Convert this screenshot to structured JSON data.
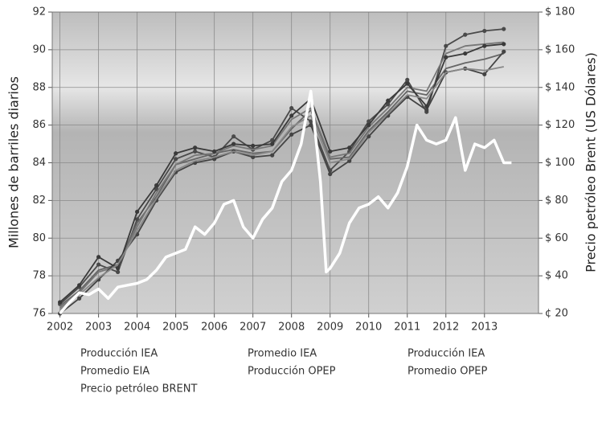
{
  "chart_data": {
    "type": "line",
    "y_label": "Millones de barriles diarios",
    "y2_label": "Precio petróleo Brent (US Dólares)",
    "x": [
      2002,
      2002.5,
      2003,
      2003.5,
      2004,
      2004.5,
      2005,
      2005.5,
      2006,
      2006.5,
      2007,
      2007.5,
      2008,
      2008.5,
      2009,
      2009.5,
      2010,
      2010.5,
      2011,
      2011.5,
      2012,
      2012.5,
      2013,
      2013.5
    ],
    "xlim": [
      2001.8,
      2014.4
    ],
    "xticks": [
      2002,
      2003,
      2004,
      2005,
      2006,
      2007,
      2008,
      2009,
      2010,
      2011,
      2012,
      2013
    ],
    "ylim": [
      76,
      92
    ],
    "yticks": [
      76,
      78,
      80,
      82,
      84,
      86,
      88,
      90,
      92
    ],
    "y2lim": [
      20,
      180
    ],
    "y2ticks": [
      {
        "value": 20,
        "label": "¢ 20"
      },
      {
        "value": 40,
        "label": "$ 40"
      },
      {
        "value": 60,
        "label": "$ 60"
      },
      {
        "value": 80,
        "label": "$ 80"
      },
      {
        "value": 100,
        "label": "$ 100"
      },
      {
        "value": 120,
        "label": "$ 120"
      },
      {
        "value": 140,
        "label": "$ 140"
      },
      {
        "value": 160,
        "label": "$ 160"
      },
      {
        "value": 180,
        "label": "$ 180"
      }
    ],
    "grid": true,
    "series": [
      {
        "name": "Producción  IEA",
        "color": "#4a4a4a",
        "markers": true,
        "values": [
          76.5,
          77.4,
          78.6,
          78.2,
          81.0,
          82.6,
          84.2,
          84.6,
          84.3,
          85.4,
          84.7,
          85.2,
          86.9,
          86.2,
          83.6,
          84.6,
          86.2,
          87.1,
          88.4,
          86.7,
          90.2,
          90.8,
          91.0,
          91.1
        ]
      },
      {
        "name": "Promedio EIA",
        "color": "#666666",
        "markers": false,
        "values": [
          76.4,
          77.2,
          78.3,
          78.6,
          80.8,
          82.2,
          83.9,
          84.2,
          84.5,
          84.7,
          84.5,
          84.6,
          85.8,
          86.8,
          84.2,
          84.3,
          85.7,
          86.7,
          87.8,
          87.6,
          89.0,
          89.3,
          89.5,
          89.8
        ]
      },
      {
        "name": "Precio petróleo BRENT",
        "color": "#ffffff",
        "axis": "y2",
        "markers": false,
        "x": [
          2002,
          2002.25,
          2002.5,
          2002.75,
          2003,
          2003.25,
          2003.5,
          2003.75,
          2004,
          2004.25,
          2004.5,
          2004.75,
          2005,
          2005.25,
          2005.5,
          2005.75,
          2006,
          2006.25,
          2006.5,
          2006.75,
          2007,
          2007.25,
          2007.5,
          2007.75,
          2008,
          2008.25,
          2008.5,
          2008.75,
          2008.9,
          2009,
          2009.25,
          2009.5,
          2009.75,
          2010,
          2010.25,
          2010.5,
          2010.75,
          2011,
          2011.25,
          2011.5,
          2011.75,
          2012,
          2012.25,
          2012.5,
          2012.75,
          2013,
          2013.25,
          2013.5,
          2013.7
        ],
        "values": [
          20,
          26,
          31,
          30,
          33,
          28,
          34,
          35,
          36,
          38,
          43,
          50,
          52,
          54,
          66,
          62,
          68,
          78,
          80,
          66,
          60,
          70,
          76,
          90,
          96,
          110,
          138,
          90,
          42,
          44,
          52,
          68,
          76,
          78,
          82,
          76,
          84,
          98,
          120,
          112,
          110,
          112,
          124,
          96,
          110,
          108,
          112,
          100,
          100
        ]
      },
      {
        "name": "Promedio IEA",
        "color": "#777777",
        "markers": false,
        "values": [
          76.3,
          77.1,
          78.2,
          78.5,
          80.6,
          82.4,
          83.9,
          84.4,
          84.5,
          84.9,
          84.7,
          84.9,
          86.3,
          86.9,
          84.3,
          84.5,
          85.9,
          86.9,
          88.0,
          87.8,
          89.8,
          90.2,
          90.3,
          90.4
        ]
      },
      {
        "name": "Producción OPEP",
        "color": "#444444",
        "markers": true,
        "values": [
          76.0,
          76.8,
          77.8,
          78.8,
          80.2,
          82.0,
          83.5,
          84.0,
          84.2,
          84.6,
          84.3,
          84.4,
          85.5,
          86.0,
          83.4,
          84.1,
          85.4,
          86.5,
          87.5,
          86.8,
          88.8,
          89.0,
          88.7,
          89.9
        ]
      },
      {
        "name": "Producción IEA",
        "color": "#3a3a3a",
        "markers": true,
        "values": [
          76.6,
          77.5,
          79.0,
          78.4,
          81.4,
          82.8,
          84.5,
          84.8,
          84.6,
          85.0,
          84.9,
          85.0,
          86.5,
          87.4,
          84.6,
          84.8,
          86.0,
          87.3,
          88.2,
          87.0,
          89.6,
          89.8,
          90.2,
          90.3
        ]
      },
      {
        "name": "Promedio OPEP",
        "color": "#888888",
        "markers": false,
        "values": [
          76.2,
          77.0,
          77.9,
          78.6,
          80.4,
          82.1,
          83.6,
          84.1,
          84.3,
          84.6,
          84.4,
          84.6,
          85.9,
          86.5,
          84.0,
          84.2,
          85.6,
          86.6,
          87.6,
          87.4,
          88.8,
          89.0,
          88.9,
          89.1
        ]
      }
    ]
  }
}
